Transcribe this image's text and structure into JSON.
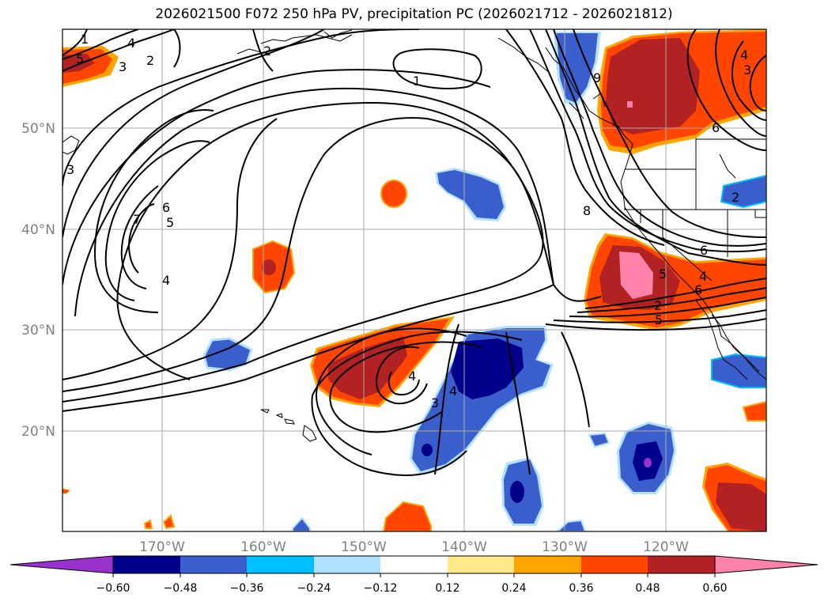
{
  "title": "2026021500 F072 250 hPa PV, precipitation PC (2026021712 - 2026021812)",
  "lat_labels": [
    "50°N",
    "40°N",
    "30°N",
    "20°N"
  ],
  "lon_labels": [
    "170°W",
    "160°W",
    "150°W",
    "140°W",
    "130°W",
    "120°W"
  ],
  "colorbar": {
    "ticks": [
      "−0.60",
      "−0.48",
      "−0.36",
      "−0.24",
      "−0.12",
      "0.12",
      "0.24",
      "0.36",
      "0.48",
      "0.60"
    ],
    "colors": [
      "#9932cc",
      "#00008b",
      "#3a5fcd",
      "#00bfff",
      "#b0e2ff",
      "#ffffff",
      "#ffe98a",
      "#ffa500",
      "#ff4500",
      "#b22222",
      "#ff82ab"
    ]
  },
  "contour_labels": [
    "1",
    "2",
    "3",
    "4",
    "5",
    "6",
    "7",
    "8",
    "9",
    "6",
    "5",
    "4",
    "3",
    "2",
    "1",
    "4",
    "3",
    "4",
    "6",
    "5",
    "4",
    "2",
    "6",
    "5",
    "4",
    "3",
    "2",
    "1",
    "5",
    "4",
    "7",
    "6"
  ]
}
